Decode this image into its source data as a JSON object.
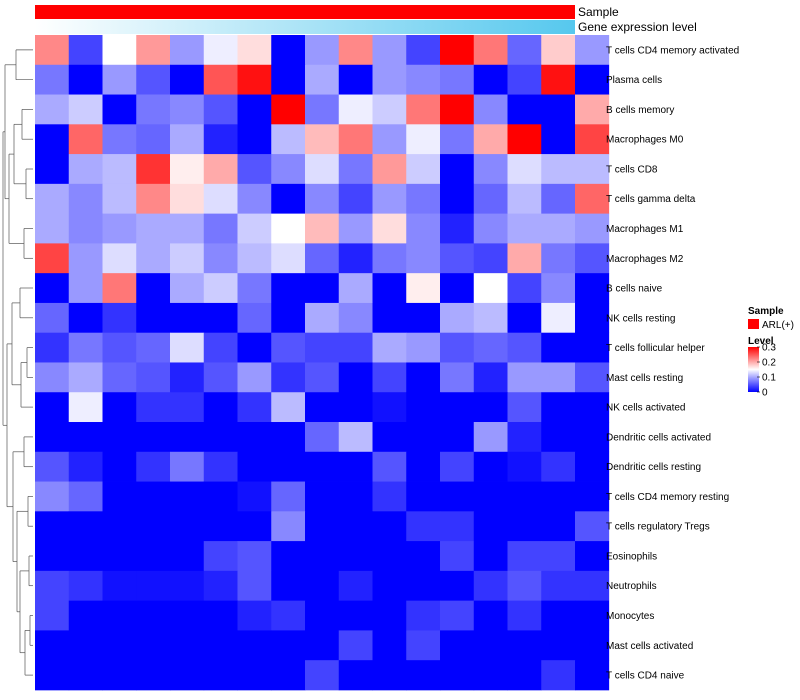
{
  "chart_data": {
    "type": "heatmap",
    "annotation_rows": [
      {
        "label": "Sample",
        "color": "#ff0000"
      },
      {
        "label": "Gene expression level",
        "gradient": [
          "#ffffff",
          "#56c8ee"
        ]
      }
    ],
    "rows": [
      "T cells CD4 memory activated",
      "Plasma cells",
      "B cells memory",
      "Macrophages M0",
      "T cells CD8",
      "T cells gamma delta",
      "Macrophages M1",
      "Macrophages M2",
      "B cells naive",
      "NK cells resting",
      "T cells follicular helper",
      "Mast cells resting",
      "NK cells activated",
      "Dendritic cells activated",
      "Dendritic cells resting",
      "T cells CD4 memory resting",
      "T cells regulatory  Tregs",
      "Eosinophils",
      "Neutrophils",
      "Monocytes",
      "Mast cells activated",
      "T cells CD4 naive"
    ],
    "n_columns": 17,
    "values": [
      [
        0.22,
        0.04,
        0.15,
        0.21,
        0.09,
        0.14,
        0.17,
        0.0,
        0.09,
        0.22,
        0.09,
        0.04,
        0.3,
        0.23,
        0.06,
        0.18,
        0.09
      ],
      [
        0.07,
        0.0,
        0.09,
        0.05,
        0.0,
        0.25,
        0.29,
        0.0,
        0.1,
        0.0,
        0.09,
        0.08,
        0.07,
        0.0,
        0.04,
        0.29,
        0.0
      ],
      [
        0.1,
        0.12,
        0.0,
        0.07,
        0.08,
        0.05,
        0.0,
        0.3,
        0.07,
        0.14,
        0.12,
        0.23,
        0.3,
        0.08,
        0.0,
        0.0,
        0.2
      ],
      [
        0.0,
        0.24,
        0.07,
        0.06,
        0.1,
        0.02,
        0.0,
        0.11,
        0.19,
        0.23,
        0.09,
        0.14,
        0.07,
        0.2,
        0.3,
        0.0,
        0.26
      ],
      [
        0.0,
        0.1,
        0.11,
        0.27,
        0.16,
        0.2,
        0.05,
        0.08,
        0.13,
        0.07,
        0.21,
        0.12,
        0.0,
        0.08,
        0.13,
        0.11,
        0.11
      ],
      [
        0.1,
        0.08,
        0.11,
        0.22,
        0.17,
        0.13,
        0.08,
        0.0,
        0.08,
        0.04,
        0.09,
        0.07,
        0.0,
        0.06,
        0.11,
        0.06,
        0.24
      ],
      [
        0.1,
        0.08,
        0.09,
        0.1,
        0.1,
        0.07,
        0.12,
        0.15,
        0.19,
        0.09,
        0.17,
        0.08,
        0.02,
        0.08,
        0.1,
        0.1,
        0.09
      ],
      [
        0.26,
        0.09,
        0.13,
        0.1,
        0.12,
        0.08,
        0.11,
        0.13,
        0.06,
        0.02,
        0.07,
        0.08,
        0.05,
        0.04,
        0.2,
        0.07,
        0.05
      ],
      [
        0.0,
        0.09,
        0.23,
        0.0,
        0.1,
        0.12,
        0.07,
        0.0,
        0.0,
        0.1,
        0.0,
        0.16,
        0.0,
        0.15,
        0.04,
        0.08,
        0.0
      ],
      [
        0.06,
        0.0,
        0.03,
        0.0,
        0.0,
        0.0,
        0.06,
        0.0,
        0.1,
        0.08,
        0.0,
        0.0,
        0.1,
        0.11,
        0.0,
        0.14,
        0.0
      ],
      [
        0.03,
        0.07,
        0.05,
        0.06,
        0.13,
        0.04,
        0.0,
        0.05,
        0.04,
        0.04,
        0.1,
        0.09,
        0.05,
        0.06,
        0.05,
        0.0,
        0.0
      ],
      [
        0.08,
        0.1,
        0.06,
        0.05,
        0.02,
        0.05,
        0.09,
        0.03,
        0.05,
        0.0,
        0.04,
        0.0,
        0.07,
        0.02,
        0.09,
        0.09,
        0.05
      ],
      [
        0.0,
        0.14,
        0.0,
        0.03,
        0.03,
        0.0,
        0.03,
        0.11,
        0.0,
        0.0,
        0.01,
        0.0,
        0.0,
        0.0,
        0.05,
        0.0,
        0.0
      ],
      [
        0.0,
        0.0,
        0.0,
        0.0,
        0.0,
        0.0,
        0.0,
        0.0,
        0.06,
        0.11,
        0.0,
        0.0,
        0.0,
        0.09,
        0.02,
        0.0,
        0.0
      ],
      [
        0.05,
        0.02,
        0.0,
        0.03,
        0.07,
        0.03,
        0.0,
        0.0,
        0.0,
        0.0,
        0.05,
        0.0,
        0.04,
        0.0,
        0.01,
        0.03,
        0.0
      ],
      [
        0.08,
        0.06,
        0.0,
        0.0,
        0.0,
        0.0,
        0.01,
        0.06,
        0.0,
        0.0,
        0.03,
        0.0,
        0.0,
        0.0,
        0.0,
        0.0,
        0.0
      ],
      [
        0.0,
        0.0,
        0.0,
        0.0,
        0.0,
        0.0,
        0.0,
        0.08,
        0.0,
        0.0,
        0.0,
        0.03,
        0.03,
        0.0,
        0.0,
        0.0,
        0.05
      ],
      [
        0.0,
        0.0,
        0.0,
        0.0,
        0.0,
        0.04,
        0.05,
        0.0,
        0.0,
        0.0,
        0.0,
        0.0,
        0.04,
        0.0,
        0.04,
        0.04,
        0.0
      ],
      [
        0.04,
        0.03,
        0.01,
        0.01,
        0.01,
        0.02,
        0.05,
        0.0,
        0.0,
        0.02,
        0.0,
        0.0,
        0.0,
        0.03,
        0.05,
        0.03,
        0.03
      ],
      [
        0.04,
        0.0,
        0.0,
        0.0,
        0.0,
        0.0,
        0.02,
        0.03,
        0.0,
        0.0,
        0.0,
        0.03,
        0.04,
        0.0,
        0.03,
        0.0,
        0.0
      ],
      [
        0.0,
        0.0,
        0.0,
        0.0,
        0.0,
        0.0,
        0.0,
        0.0,
        0.0,
        0.04,
        0.0,
        0.04,
        0.0,
        0.0,
        0.0,
        0.0,
        0.0
      ],
      [
        0.0,
        0.0,
        0.0,
        0.0,
        0.0,
        0.0,
        0.0,
        0.0,
        0.04,
        0.0,
        0.0,
        0.0,
        0.0,
        0.0,
        0.0,
        0.03,
        0.0
      ]
    ],
    "color_scale": {
      "min": 0,
      "mid": 0.15,
      "max": 0.3,
      "low_color": "#0000ff",
      "mid_color": "#ffffff",
      "high_color": "#ff0000"
    },
    "legend": {
      "sample_title": "Sample",
      "sample_entry": "ARL(+)",
      "level_title": "Level",
      "ticks": [
        0.3,
        0.2,
        0.1,
        0
      ],
      "tick_labels": [
        "0.3",
        "0.2",
        "0.1",
        "0"
      ]
    }
  }
}
